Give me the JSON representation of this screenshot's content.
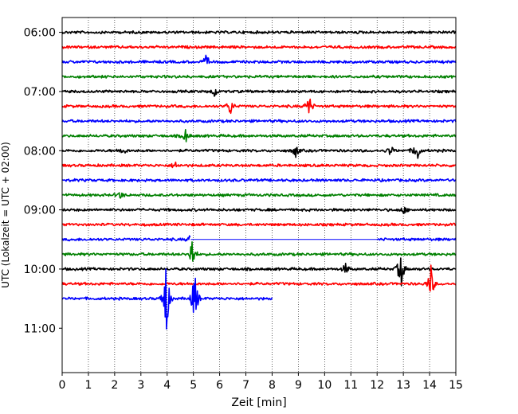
{
  "chart_data": {
    "type": "line",
    "title": "",
    "xlabel": "Zeit  [min]",
    "ylabel": "UTC (Lokalzeit = UTC + 02:00)",
    "xlim": [
      0,
      15
    ],
    "x_ticks": [
      0,
      1,
      2,
      3,
      4,
      5,
      6,
      7,
      8,
      9,
      10,
      11,
      12,
      13,
      14,
      15
    ],
    "x_grid": "dotted",
    "ylim_hours": [
      "05:45",
      "11:45"
    ],
    "y_ticks": [
      "06:00",
      "07:00",
      "08:00",
      "09:00",
      "10:00",
      "11:00"
    ],
    "trace_interval_min": 15,
    "trace_colors": [
      "#000000",
      "#ff0000",
      "#0000ff",
      "#008000"
    ],
    "traces": [
      {
        "start": "06:00",
        "color": "#000000",
        "x_end": 15,
        "events": []
      },
      {
        "start": "06:15",
        "color": "#ff0000",
        "x_end": 15,
        "events": []
      },
      {
        "start": "06:30",
        "color": "#0000ff",
        "x_end": 15,
        "events": [
          {
            "x": 5.5,
            "amp": 0.5
          }
        ]
      },
      {
        "start": "06:45",
        "color": "#008000",
        "x_end": 15,
        "events": []
      },
      {
        "start": "07:00",
        "color": "#000000",
        "x_end": 15,
        "events": [
          {
            "x": 5.8,
            "amp": 0.4
          }
        ]
      },
      {
        "start": "07:15",
        "color": "#ff0000",
        "x_end": 15,
        "events": [
          {
            "x": 6.4,
            "amp": 0.7
          },
          {
            "x": 9.4,
            "amp": 0.9
          }
        ]
      },
      {
        "start": "07:30",
        "color": "#0000ff",
        "x_end": 15,
        "events": []
      },
      {
        "start": "07:45",
        "color": "#008000",
        "x_end": 15,
        "events": [
          {
            "x": 4.7,
            "amp": 0.5
          }
        ]
      },
      {
        "start": "08:00",
        "color": "#000000",
        "x_end": 15,
        "events": [
          {
            "x": 2.3,
            "amp": 0.4
          },
          {
            "x": 8.9,
            "amp": 0.5
          },
          {
            "x": 12.5,
            "amp": 0.4
          },
          {
            "x": 13.5,
            "amp": 1.1
          }
        ]
      },
      {
        "start": "08:15",
        "color": "#ff0000",
        "x_end": 15,
        "events": [
          {
            "x": 4.3,
            "amp": 0.3
          }
        ]
      },
      {
        "start": "08:30",
        "color": "#0000ff",
        "x_end": 15,
        "events": []
      },
      {
        "start": "08:45",
        "color": "#008000",
        "x_end": 15,
        "events": [
          {
            "x": 2.2,
            "amp": 0.3
          }
        ]
      },
      {
        "start": "09:00",
        "color": "#000000",
        "x_end": 15,
        "events": [
          {
            "x": 13.0,
            "amp": 0.3
          }
        ]
      },
      {
        "start": "09:15",
        "color": "#ff0000",
        "x_end": 15,
        "events": []
      },
      {
        "start": "09:30",
        "color": "#0000ff",
        "x_end": 15,
        "gap": [
          4.9,
          12.0
        ],
        "events": [
          {
            "x": 4.9,
            "amp": 0.4
          }
        ]
      },
      {
        "start": "09:45",
        "color": "#008000",
        "x_end": 15,
        "events": [
          {
            "x": 4.95,
            "amp": 1.3
          }
        ]
      },
      {
        "start": "10:00",
        "color": "#000000",
        "x_end": 15,
        "events": [
          {
            "x": 10.8,
            "amp": 0.4
          },
          {
            "x": 12.9,
            "amp": 1.6
          }
        ]
      },
      {
        "start": "10:15",
        "color": "#ff0000",
        "x_end": 15,
        "events": [
          {
            "x": 14.05,
            "amp": 1.3
          }
        ]
      },
      {
        "start": "10:30",
        "color": "#0000ff",
        "x_end": 8.0,
        "events": [
          {
            "x": 3.95,
            "amp": 3.5
          },
          {
            "x": 5.05,
            "amp": 2.2
          }
        ]
      }
    ]
  }
}
